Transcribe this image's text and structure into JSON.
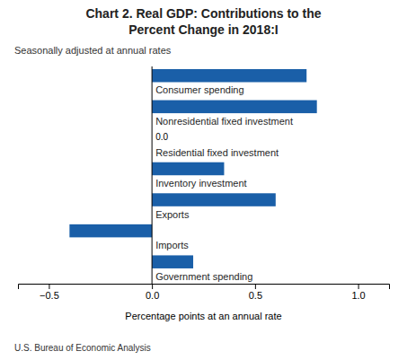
{
  "chart_data": {
    "type": "bar",
    "orientation": "horizontal",
    "title": [
      "Chart 2. Real GDP: Contributions to the",
      "Percent Change in 2018:I"
    ],
    "subtitle": "Seasonally adjusted at annual rates",
    "xlabel": "Percentage points at an annual rate",
    "annotations": [
      "U.S. Bureau of Economic Analysis"
    ],
    "categories": [
      "Consumer spending",
      "Nonresidential fixed investment",
      "Residential fixed investment",
      "Inventory investment",
      "Exports",
      "Imports",
      "Government spending"
    ],
    "values": [
      0.75,
      0.8,
      0.0,
      0.35,
      0.6,
      -0.4,
      0.2
    ],
    "value_labels": [
      null,
      null,
      "0.0",
      null,
      null,
      null,
      null
    ],
    "color": "#1a5fa8",
    "xlim": [
      -0.65,
      1.15
    ],
    "xticks": [
      {
        "value": -0.5,
        "label": "−0.5"
      },
      {
        "value": 0,
        "label": "0.0"
      },
      0.5,
      {
        "value": 1,
        "label": "1.0"
      }
    ],
    "grid": false
  }
}
